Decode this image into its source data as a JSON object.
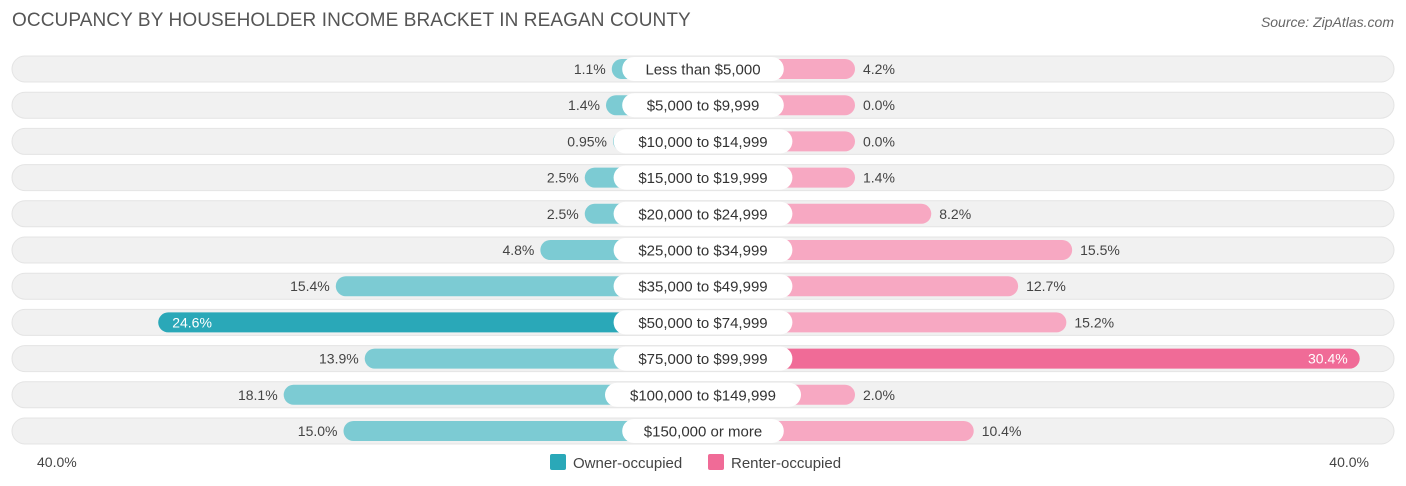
{
  "title": "OCCUPANCY BY HOUSEHOLDER INCOME BRACKET IN REAGAN COUNTY",
  "source": "Source: ZipAtlas.com",
  "colors": {
    "owner": "#7ccbd3",
    "owner_strong": "#2aa8b8",
    "renter": "#f7a8c2",
    "renter_strong": "#f06b97",
    "track": "#f1f1f1"
  },
  "chart_data": {
    "type": "bar",
    "orientation": "horizontal-diverging",
    "title": "OCCUPANCY BY HOUSEHOLDER INCOME BRACKET IN REAGAN COUNTY",
    "categories": [
      "Less than $5,000",
      "$5,000 to $9,999",
      "$10,000 to $14,999",
      "$15,000 to $19,999",
      "$20,000 to $24,999",
      "$25,000 to $34,999",
      "$35,000 to $49,999",
      "$50,000 to $74,999",
      "$75,000 to $99,999",
      "$100,000 to $149,999",
      "$150,000 or more"
    ],
    "series": [
      {
        "name": "Owner-occupied",
        "values": [
          1.1,
          1.4,
          0.95,
          2.5,
          2.5,
          4.8,
          15.4,
          24.6,
          13.9,
          18.1,
          15.0
        ],
        "labels": [
          "1.1%",
          "1.4%",
          "0.95%",
          "2.5%",
          "2.5%",
          "4.8%",
          "15.4%",
          "24.6%",
          "13.9%",
          "18.1%",
          "15.0%"
        ]
      },
      {
        "name": "Renter-occupied",
        "values": [
          4.2,
          0.0,
          0.0,
          1.4,
          8.2,
          15.5,
          12.7,
          15.2,
          30.4,
          2.0,
          10.4
        ],
        "labels": [
          "4.2%",
          "0.0%",
          "0.0%",
          "1.4%",
          "8.2%",
          "15.5%",
          "12.7%",
          "15.2%",
          "30.4%",
          "2.0%",
          "10.4%"
        ]
      }
    ],
    "xlim": [
      -40,
      40
    ],
    "axis_left_label": "40.0%",
    "axis_right_label": "40.0%",
    "legend": [
      "Owner-occupied",
      "Renter-occupied"
    ],
    "legend_position": "bottom-center"
  }
}
